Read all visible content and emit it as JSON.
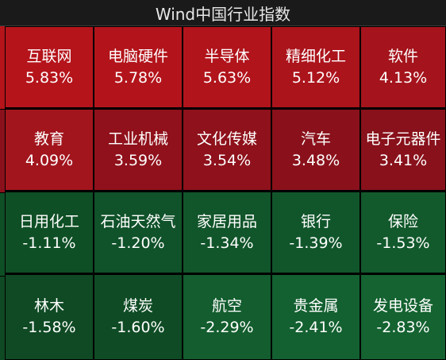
{
  "header": {
    "title": "Wind中国行业指数"
  },
  "tiles": [
    {
      "name": "互联网",
      "pct": "5.83%",
      "color": "#b5141b"
    },
    {
      "name": "电脑硬件",
      "pct": "5.78%",
      "color": "#b3141b"
    },
    {
      "name": "半导体",
      "pct": "5.63%",
      "color": "#b1141b"
    },
    {
      "name": "精细化工",
      "pct": "5.12%",
      "color": "#ac141c"
    },
    {
      "name": "软件",
      "pct": "4.13%",
      "color": "#a5141c"
    },
    {
      "name": "教育",
      "pct": "4.09%",
      "color": "#a2151d"
    },
    {
      "name": "工业机械",
      "pct": "3.59%",
      "color": "#90111b"
    },
    {
      "name": "文化传媒",
      "pct": "3.54%",
      "color": "#8e111b"
    },
    {
      "name": "汽车",
      "pct": "3.48%",
      "color": "#8a111b"
    },
    {
      "name": "电子元器件",
      "pct": "3.41%",
      "color": "#88111b"
    },
    {
      "name": "日用化工",
      "pct": "-1.11%",
      "color": "#0f4f25"
    },
    {
      "name": "石油天然气",
      "pct": "-1.20%",
      "color": "#10522a"
    },
    {
      "name": "家居用品",
      "pct": "-1.34%",
      "color": "#11552a"
    },
    {
      "name": "银行",
      "pct": "-1.39%",
      "color": "#11562b"
    },
    {
      "name": "保险",
      "pct": "-1.53%",
      "color": "#12592c"
    },
    {
      "name": "林木",
      "pct": "-1.58%",
      "color": "#0f4a24"
    },
    {
      "name": "煤炭",
      "pct": "-1.60%",
      "color": "#0f4c25"
    },
    {
      "name": "航空",
      "pct": "-2.29%",
      "color": "#135d2e"
    },
    {
      "name": "贵金属",
      "pct": "-2.41%",
      "color": "#136030"
    },
    {
      "name": "发电设备",
      "pct": "-2.83%",
      "color": "#146331"
    }
  ],
  "left_strip_colors": [
    "#b5141b",
    "#8a111b",
    "#0f4f25",
    "#0f4a24"
  ]
}
